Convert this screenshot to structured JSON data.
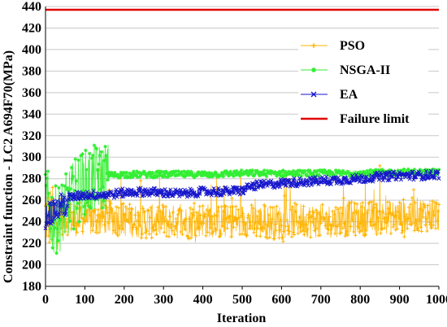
{
  "chart_data": {
    "type": "line",
    "title": "",
    "xlabel": "Iteration",
    "ylabel": "Constraint function - LC2 A694F70(MPa)",
    "xlim": [
      0,
      1000
    ],
    "ylim": [
      180,
      440
    ],
    "xticks": [
      0,
      100,
      200,
      300,
      400,
      500,
      600,
      700,
      800,
      900,
      1000
    ],
    "yticks": [
      180,
      200,
      220,
      240,
      260,
      280,
      300,
      320,
      340,
      360,
      380,
      400,
      420,
      440
    ],
    "grid": "horizontal",
    "legend_position": "top-right",
    "series": [
      {
        "name": "PSO",
        "color": "#FFB400",
        "marker": "plus",
        "x": [
          0,
          25,
          50,
          75,
          100,
          125,
          150,
          200,
          250,
          300,
          350,
          400,
          450,
          500,
          550,
          600,
          650,
          700,
          750,
          800,
          850,
          900,
          950,
          1000
        ],
        "y": [
          245,
          243,
          244,
          242,
          243,
          241,
          244,
          242,
          240,
          241,
          239,
          242,
          240,
          241,
          240,
          240,
          242,
          240,
          242,
          243,
          244,
          245,
          247,
          247
        ],
        "spread": [
          [
            0,
            30
          ],
          [
            100,
            25
          ],
          [
            160,
            40
          ],
          [
            200,
            18
          ],
          [
            500,
            20
          ],
          [
            550,
            40
          ],
          [
            700,
            40
          ],
          [
            800,
            40
          ],
          [
            1000,
            38
          ]
        ]
      },
      {
        "name": "NSGA-II",
        "color": "#33EE33",
        "marker": "asterisk",
        "x": [
          0,
          20,
          40,
          60,
          80,
          100,
          130,
          160,
          200,
          300,
          400,
          500,
          600,
          700,
          800,
          900,
          1000
        ],
        "y": [
          262,
          240,
          245,
          258,
          270,
          275,
          280,
          283,
          284,
          284,
          284,
          285,
          285,
          285,
          285,
          286,
          286
        ]
      },
      {
        "name": "EA",
        "color": "#1515CC",
        "marker": "x",
        "x": [
          0,
          10,
          20,
          30,
          40,
          50,
          60,
          80,
          100,
          150,
          200,
          250,
          300,
          350,
          400,
          450,
          500,
          520,
          550,
          600,
          650,
          700,
          750,
          800,
          850,
          900,
          950,
          1000
        ],
        "y": [
          245,
          248,
          250,
          252,
          254,
          256,
          262,
          264,
          265,
          265,
          267,
          268,
          267,
          266,
          268,
          268,
          269,
          273,
          274,
          276,
          277,
          278,
          279,
          280,
          282,
          283,
          283,
          284
        ]
      },
      {
        "name": "Failure limit",
        "color": "#E00000",
        "marker": "none",
        "x": [
          0,
          1000
        ],
        "y": [
          437,
          437
        ]
      }
    ]
  }
}
